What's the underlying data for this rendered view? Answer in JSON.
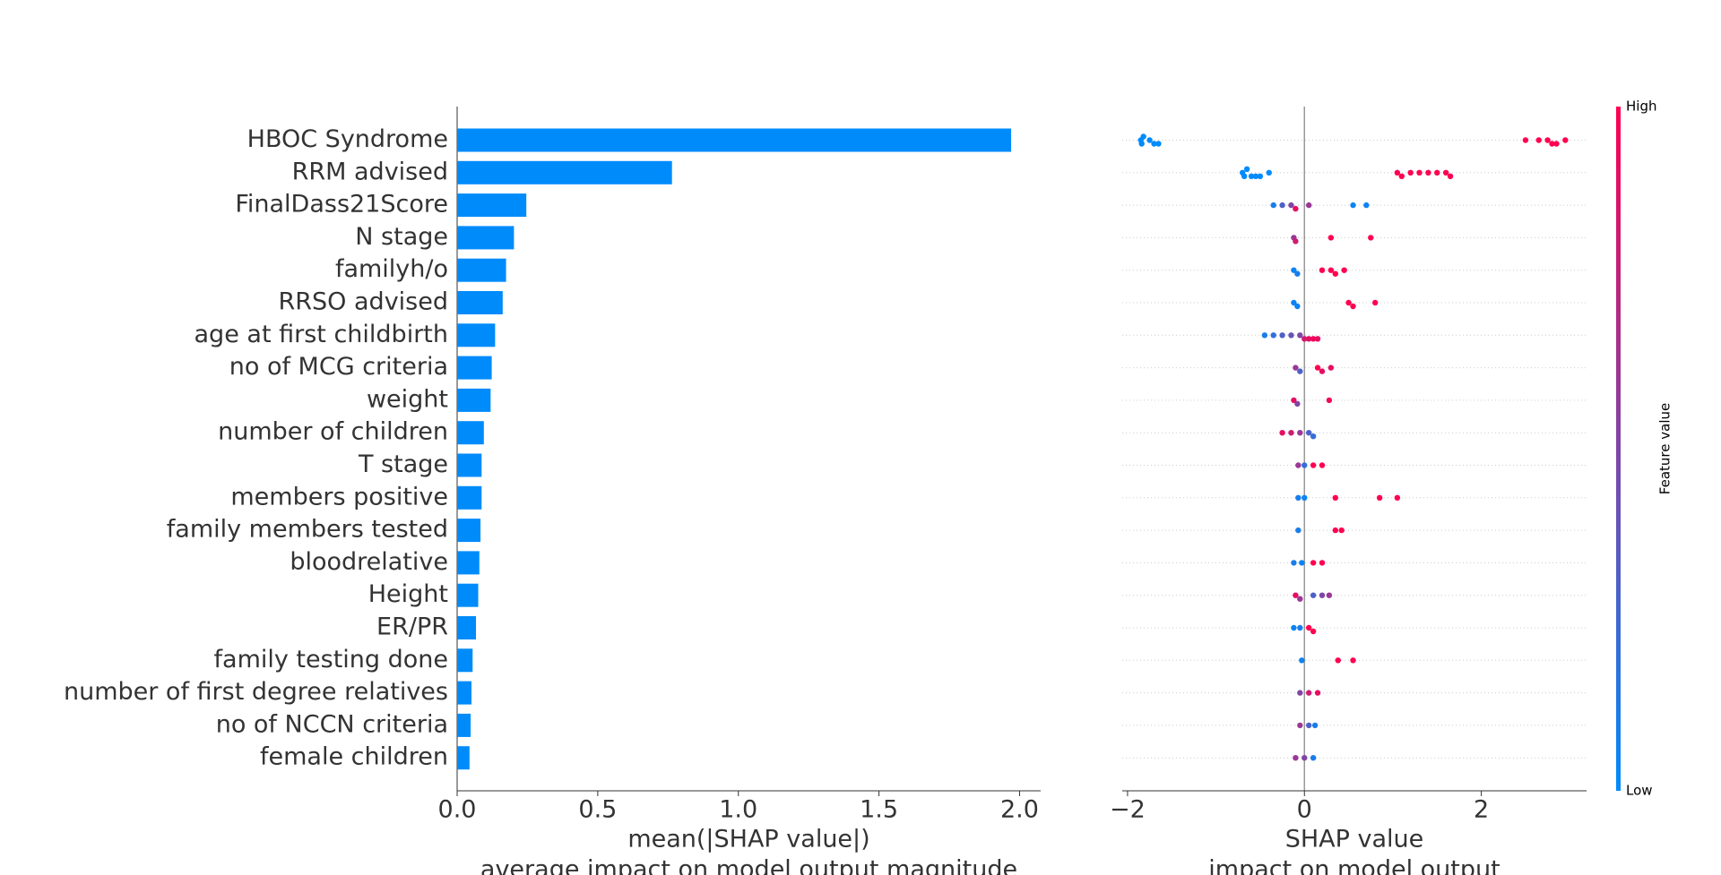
{
  "chart_data": [
    {
      "type": "bar",
      "orientation": "horizontal",
      "categories": [
        "HBOC Syndrome",
        "RRM advised",
        "FinalDass21Score",
        "N stage",
        "familyh/o",
        "RRSO advised",
        "age at first childbirth",
        "no of MCG criteria",
        "weight",
        "number of children",
        "T stage",
        "members positive",
        "family members tested",
        "bloodrelative",
        "Height",
        "ER/PR",
        "family testing done",
        "number of first degree relatives",
        "no of NCCN criteria",
        "female children"
      ],
      "values": [
        1.97,
        0.764,
        0.246,
        0.202,
        0.174,
        0.162,
        0.135,
        0.123,
        0.119,
        0.095,
        0.087,
        0.087,
        0.083,
        0.079,
        0.075,
        0.067,
        0.055,
        0.051,
        0.048,
        0.044
      ],
      "color": "#008bfb",
      "xlim": [
        0,
        2.075
      ],
      "xticks": [
        {
          "value": 0,
          "label": "0.0"
        },
        {
          "value": 0.5,
          "label": "0.5"
        },
        {
          "value": 1,
          "label": "1.0"
        },
        {
          "value": 1.5,
          "label": "1.5"
        },
        {
          "value": 2,
          "label": "2.0"
        }
      ],
      "xlabel": [
        "mean(|SHAP value|)",
        "average impact on model output magnitude"
      ]
    },
    {
      "type": "beeswarm",
      "low_color": "#008bfb",
      "high_color": "#ff0051",
      "xlim": [
        -2.06,
        3.19
      ],
      "xticks": [
        {
          "value": -2,
          "label": "−2"
        },
        0,
        2
      ],
      "xlabel": [
        "SHAP value",
        "impact on model output"
      ],
      "colorbar": {
        "label": "Feature value",
        "high": "High",
        "low": "Low"
      },
      "rows": [
        {
          "x": [
            -1.85,
            -1.84,
            -1.82,
            -1.75,
            -1.7,
            -1.65,
            2.5,
            2.65,
            2.75,
            2.8,
            2.85,
            2.95
          ],
          "feature_value": [
            0,
            0,
            0,
            0,
            0,
            0,
            1,
            1,
            1,
            1,
            1,
            1
          ]
        },
        {
          "x": [
            -0.7,
            -0.68,
            -0.65,
            -0.6,
            -0.55,
            -0.5,
            -0.4,
            1.05,
            1.1,
            1.2,
            1.3,
            1.4,
            1.5,
            1.6,
            1.65
          ],
          "feature_value": [
            0,
            0,
            0,
            0,
            0,
            0,
            0,
            1,
            1,
            1,
            1,
            1,
            1,
            1,
            1
          ]
        },
        {
          "x": [
            -0.35,
            -0.25,
            -0.15,
            -0.1,
            0.05,
            0.55,
            0.7
          ],
          "feature_value": [
            0.1,
            0.3,
            0.5,
            0.9,
            0.6,
            0.05,
            0.05
          ]
        },
        {
          "x": [
            -0.12,
            -0.1,
            0.3,
            0.75
          ],
          "feature_value": [
            0.6,
            0.8,
            1,
            1
          ]
        },
        {
          "x": [
            -0.12,
            -0.08,
            0.2,
            0.3,
            0.35,
            0.45
          ],
          "feature_value": [
            0.05,
            0.1,
            1,
            1,
            1,
            1
          ]
        },
        {
          "x": [
            -0.12,
            -0.08,
            0.5,
            0.55,
            0.8
          ],
          "feature_value": [
            0.05,
            0.05,
            1,
            1,
            1
          ]
        },
        {
          "x": [
            -0.45,
            -0.35,
            -0.25,
            -0.15,
            -0.05,
            0.0,
            0.05,
            0.1,
            0.15
          ],
          "feature_value": [
            0.1,
            0.2,
            0.3,
            0.4,
            0.5,
            0.8,
            0.9,
            0.95,
            0.9
          ]
        },
        {
          "x": [
            -0.1,
            -0.05,
            0.15,
            0.2,
            0.3
          ],
          "feature_value": [
            0.6,
            0.3,
            1,
            0.9,
            0.9
          ]
        },
        {
          "x": [
            -0.12,
            -0.08,
            0.28
          ],
          "feature_value": [
            0.9,
            0.5,
            0.95
          ]
        },
        {
          "x": [
            -0.25,
            -0.15,
            -0.05,
            0.05,
            0.1
          ],
          "feature_value": [
            0.9,
            0.8,
            0.6,
            0.3,
            0.2
          ]
        },
        {
          "x": [
            -0.07,
            0.0,
            0.1,
            0.2
          ],
          "feature_value": [
            0.6,
            0.2,
            1,
            1
          ]
        },
        {
          "x": [
            -0.07,
            0.0,
            0.35,
            0.85,
            1.05
          ],
          "feature_value": [
            0.1,
            0.05,
            1,
            1,
            1
          ]
        },
        {
          "x": [
            -0.07,
            0.35,
            0.42
          ],
          "feature_value": [
            0.1,
            1,
            1
          ]
        },
        {
          "x": [
            -0.12,
            -0.03,
            0.1,
            0.2
          ],
          "feature_value": [
            0.1,
            0.05,
            1,
            1
          ]
        },
        {
          "x": [
            -0.1,
            -0.05,
            0.1,
            0.2,
            0.28
          ],
          "feature_value": [
            0.9,
            0.6,
            0.3,
            0.5,
            0.6
          ]
        },
        {
          "x": [
            -0.12,
            -0.05,
            0.05,
            0.1
          ],
          "feature_value": [
            0.05,
            0.1,
            1,
            1
          ]
        },
        {
          "x": [
            -0.03,
            0.38,
            0.55
          ],
          "feature_value": [
            0.05,
            1,
            1
          ]
        },
        {
          "x": [
            -0.05,
            0.05,
            0.15
          ],
          "feature_value": [
            0.5,
            0.8,
            0.9
          ]
        },
        {
          "x": [
            -0.05,
            0.05,
            0.12
          ],
          "feature_value": [
            0.6,
            0.3,
            0.1
          ]
        },
        {
          "x": [
            -0.1,
            0.0,
            0.1
          ],
          "feature_value": [
            0.6,
            0.5,
            0.1
          ]
        }
      ]
    }
  ]
}
